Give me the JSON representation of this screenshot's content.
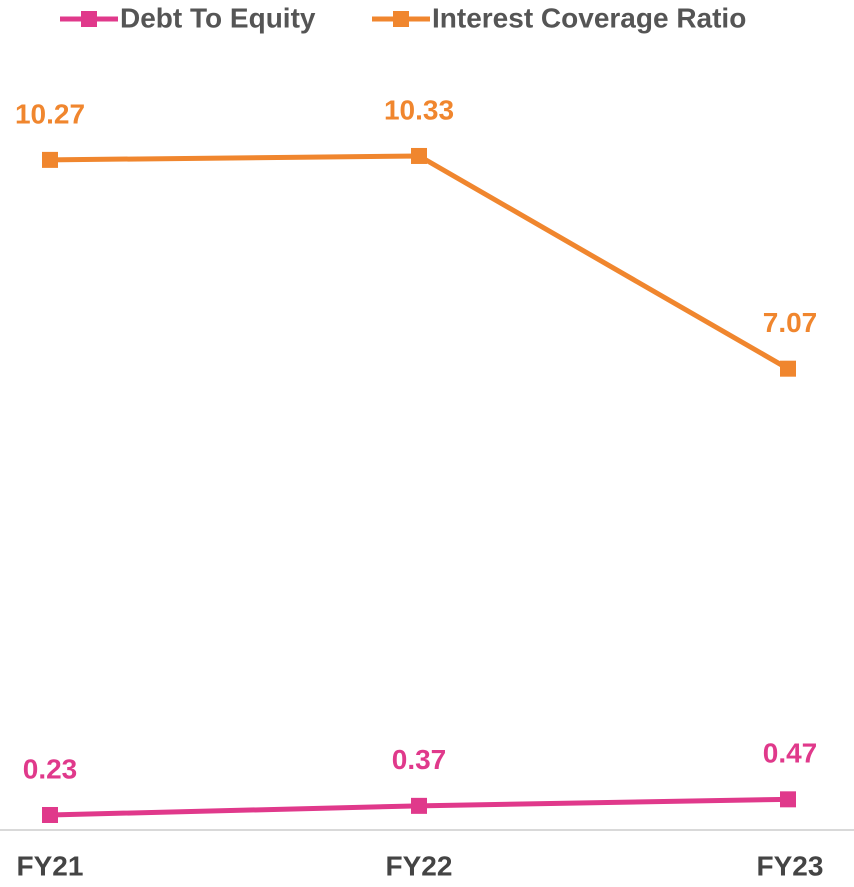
{
  "chart_data": {
    "type": "line",
    "categories": [
      "FY21",
      "FY22",
      "FY23"
    ],
    "series": [
      {
        "name": "Debt To Equity",
        "color": "#e0398b",
        "values": [
          0.23,
          0.37,
          0.47
        ]
      },
      {
        "name": "Interest Coverage Ratio",
        "color": "#f0862e",
        "values": [
          10.27,
          10.33,
          7.07
        ]
      }
    ],
    "ylim": [
      0,
      12
    ]
  }
}
